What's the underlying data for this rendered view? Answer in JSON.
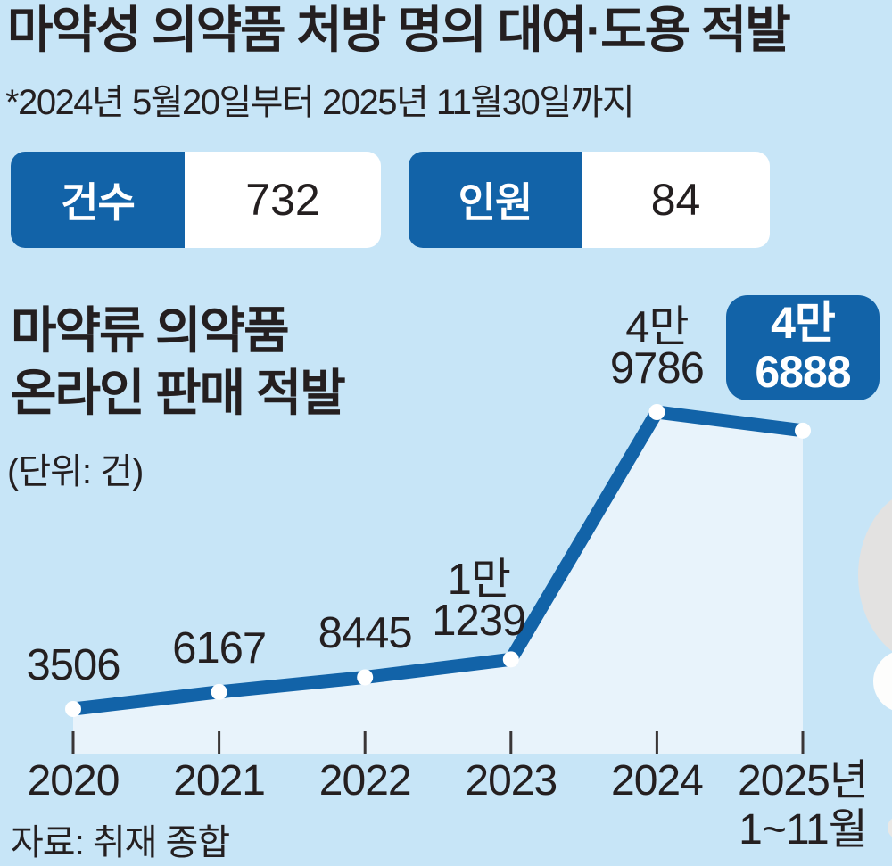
{
  "header": {
    "title": "마약성 의약품 처방 명의 대여·도용 적발",
    "subtitle": "*2024년 5월20일부터 2025년 11월30일까지"
  },
  "stats": [
    {
      "label": "건수",
      "value": "732"
    },
    {
      "label": "인원",
      "value": "84"
    }
  ],
  "chart": {
    "heading_line1": "마약류 의약품",
    "heading_line2": "온라인 판매 적발",
    "unit": "(단위: 건)",
    "source": "자료: 취재 종합"
  },
  "chart_data": {
    "type": "line",
    "title": "마약류 의약품 온라인 판매 적발",
    "ylabel": "건",
    "categories": [
      "2020",
      "2021",
      "2022",
      "2023",
      "2024",
      "2025년 1~11월"
    ],
    "values": [
      3506,
      6167,
      8445,
      11239,
      49786,
      46888
    ],
    "point_labels": [
      [
        "3506"
      ],
      [
        "6167"
      ],
      [
        "8445"
      ],
      [
        "1만",
        "1239"
      ],
      [
        "4만",
        "9786"
      ]
    ],
    "badge_label": [
      "4만",
      "6888"
    ],
    "x_tick_labels": [
      "2020",
      "2021",
      "2022",
      "2023",
      "2024",
      "2025년"
    ],
    "x_tick_sublabels": [
      "",
      "",
      "",
      "",
      "",
      "1~11월"
    ],
    "ylim": [
      0,
      52000
    ],
    "grid": false,
    "legend": "none"
  },
  "colors": {
    "background": "#c7e5f7",
    "primary_blue": "#1263a8",
    "area_fill": "#e8f3fb",
    "text_dark": "#241f20",
    "tick": "#3a3637",
    "dot": "#ffffff",
    "decor_grey": "#e3e2e1",
    "decor_light": "#f7f7f5",
    "decor_white": "#fdfdfc"
  }
}
